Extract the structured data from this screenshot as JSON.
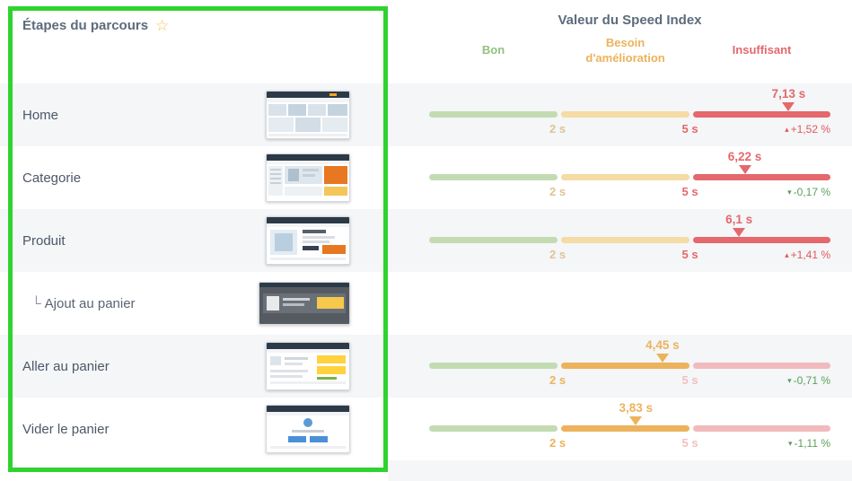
{
  "header": {
    "journey_title": "Étapes du parcours",
    "star_icon": "☆",
    "speed_index_title": "Valeur du Speed Index",
    "zone_good": "Bon",
    "zone_improve": "Besoin d'amélioration",
    "zone_bad": "Insuffisant"
  },
  "scale": {
    "min": 0,
    "tick1": 2,
    "tick2": 5,
    "max": 8,
    "tick1_label": "2 s",
    "tick2_label": "5 s"
  },
  "colors": {
    "highlight": "#2fd32f",
    "good": "#93c17d",
    "improve": "#ecb35c",
    "bad": "#e4686c",
    "delta_up": "#e0585b",
    "delta_down": "#5ba05b"
  },
  "rows": [
    {
      "label": "Home",
      "gauge": true,
      "value": 7.13,
      "value_label": "7,13 s",
      "zone": "red",
      "delta": "+1,52 %",
      "delta_dir": "up",
      "delta_icon": "▴"
    },
    {
      "label": "Categorie",
      "gauge": true,
      "value": 6.22,
      "value_label": "6,22 s",
      "zone": "red",
      "delta": "-0,17 %",
      "delta_dir": "down",
      "delta_icon": "▾"
    },
    {
      "label": "Produit",
      "gauge": true,
      "value": 6.1,
      "value_label": "6,1 s",
      "zone": "red",
      "delta": "+1,41 %",
      "delta_dir": "up",
      "delta_icon": "▴"
    },
    {
      "prefix": "└",
      "label": "Ajout au panier",
      "gauge": false
    },
    {
      "label": "Aller au panier",
      "gauge": true,
      "value": 4.45,
      "value_label": "4,45 s",
      "zone": "yellow",
      "delta": "-0,71 %",
      "delta_dir": "down",
      "delta_icon": "▾"
    },
    {
      "label": "Vider le panier",
      "gauge": true,
      "value": 3.83,
      "value_label": "3,83 s",
      "zone": "yellow",
      "delta": "-1,11 %",
      "delta_dir": "down",
      "delta_icon": "▾"
    }
  ]
}
